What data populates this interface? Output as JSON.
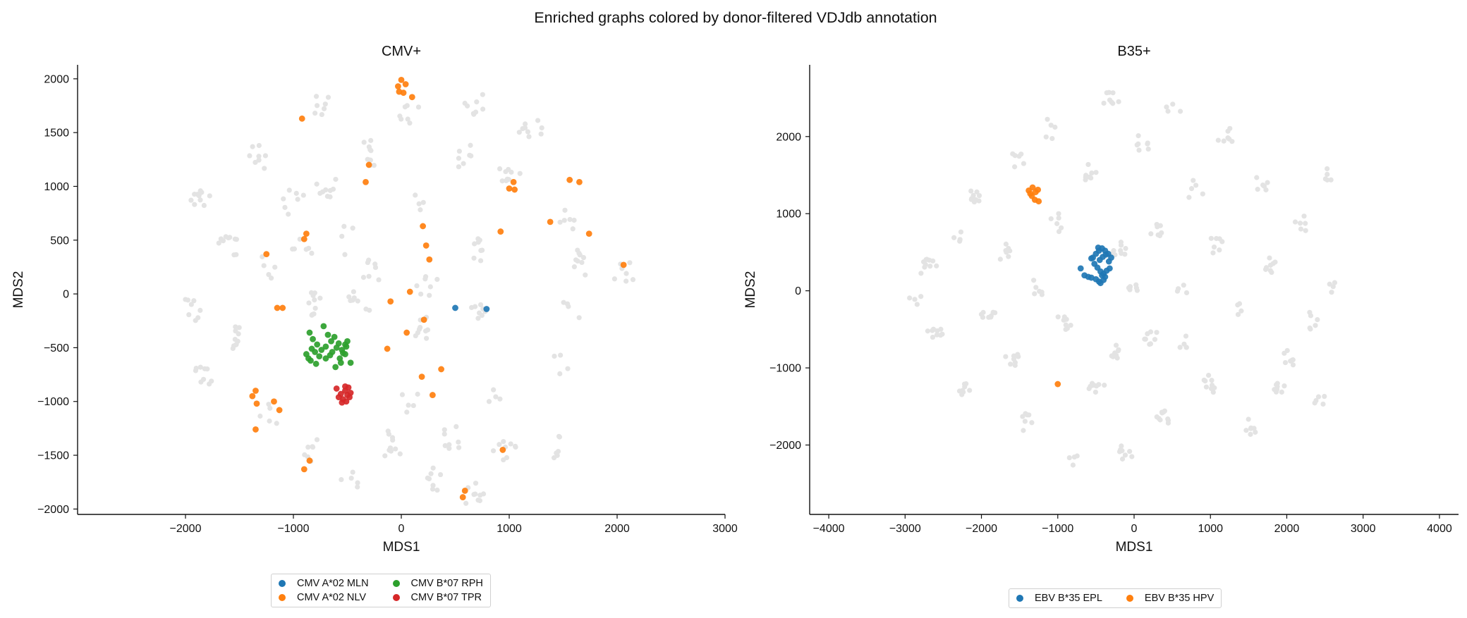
{
  "figure_title": "Enriched graphs colored by donor-filtered VDJdb annotation",
  "colors": {
    "background_nodes": "#e3e3e3",
    "blue": "#1f77b4",
    "orange": "#ff7f0e",
    "green": "#2ca02c",
    "red": "#d62728"
  },
  "chart_data": [
    {
      "type": "scatter",
      "title": "CMV+",
      "xlabel": "MDS1",
      "ylabel": "MDS2",
      "xlim": [
        -3000,
        3000
      ],
      "ylim": [
        -2050,
        2130
      ],
      "xticks": [
        -2000,
        -1000,
        0,
        1000,
        2000,
        3000
      ],
      "yticks": [
        -2000,
        -1500,
        -1000,
        -500,
        0,
        500,
        1000,
        1500,
        2000
      ],
      "grid": false,
      "legend_position": "below",
      "legend_columns": 2,
      "background_clusters": [
        {
          "x": -1950,
          "y": -150
        },
        {
          "x": -1850,
          "y": -750
        },
        {
          "x": -1600,
          "y": 450
        },
        {
          "x": -1850,
          "y": 900
        },
        {
          "x": -1300,
          "y": 1300
        },
        {
          "x": -1000,
          "y": 850
        },
        {
          "x": -1250,
          "y": 250
        },
        {
          "x": -1500,
          "y": -400
        },
        {
          "x": -1200,
          "y": -1100
        },
        {
          "x": -850,
          "y": -1450
        },
        {
          "x": -450,
          "y": -1750
        },
        {
          "x": -800,
          "y": -100
        },
        {
          "x": -400,
          "y": -100
        },
        {
          "x": -500,
          "y": 500
        },
        {
          "x": -700,
          "y": 1000
        },
        {
          "x": -300,
          "y": 1300
        },
        {
          "x": -750,
          "y": 1750
        },
        {
          "x": 50,
          "y": 1700
        },
        {
          "x": 700,
          "y": 1750
        },
        {
          "x": 550,
          "y": 1300
        },
        {
          "x": 1200,
          "y": 1500
        },
        {
          "x": 1000,
          "y": 1100
        },
        {
          "x": 150,
          "y": 800
        },
        {
          "x": 700,
          "y": 400
        },
        {
          "x": 1500,
          "y": 650
        },
        {
          "x": 1700,
          "y": 300
        },
        {
          "x": 1600,
          "y": -100
        },
        {
          "x": 2050,
          "y": 200
        },
        {
          "x": 1450,
          "y": -700
        },
        {
          "x": 1450,
          "y": -1400
        },
        {
          "x": 950,
          "y": -1450
        },
        {
          "x": 900,
          "y": -950
        },
        {
          "x": 700,
          "y": -150
        },
        {
          "x": 200,
          "y": -300
        },
        {
          "x": 100,
          "y": -1000
        },
        {
          "x": -100,
          "y": -1400
        },
        {
          "x": 300,
          "y": -1750
        },
        {
          "x": 650,
          "y": -1850
        },
        {
          "x": 450,
          "y": -1350
        },
        {
          "x": -300,
          "y": 200
        },
        {
          "x": 250,
          "y": 100
        },
        {
          "x": -900,
          "y": 450
        }
      ],
      "series": [
        {
          "name": "CMV A*02 MLN",
          "color": "#1f77b4",
          "x": [
            500,
            790
          ],
          "y": [
            -130,
            -140
          ]
        },
        {
          "name": "CMV A*02 NLV",
          "color": "#ff7f0e",
          "x": [
            -30,
            0,
            40,
            20,
            -20,
            100,
            -300,
            -330,
            1000,
            1040,
            1050,
            1560,
            1650,
            -1250,
            -1150,
            -1100,
            -1350,
            -1380,
            -1340,
            -1180,
            -1130,
            -1350,
            -900,
            -880,
            -920,
            200,
            230,
            260,
            920,
            1380,
            1740,
            2060,
            -100,
            80,
            50,
            210,
            -130,
            190,
            370,
            290,
            940,
            -900,
            -850,
            590,
            570
          ],
          "y": [
            1930,
            1990,
            1950,
            1870,
            1880,
            1830,
            1200,
            1040,
            980,
            1040,
            970,
            1060,
            1040,
            370,
            -130,
            -130,
            -900,
            -950,
            -1020,
            -1000,
            -1080,
            -1260,
            510,
            560,
            1630,
            630,
            450,
            320,
            580,
            670,
            560,
            270,
            -70,
            20,
            -360,
            -240,
            -510,
            -770,
            -700,
            -940,
            -1450,
            -1630,
            -1550,
            -1830,
            -1890
          ]
        },
        {
          "name": "CMV B*07 RPH",
          "color": "#2ca02c",
          "x": [
            -850,
            -820,
            -780,
            -720,
            -680,
            -650,
            -620,
            -580,
            -550,
            -520,
            -500,
            -880,
            -860,
            -840,
            -800,
            -760,
            -740,
            -700,
            -660,
            -640,
            -600,
            -570,
            -540,
            -510,
            -470,
            -830,
            -790,
            -610,
            -700,
            -560,
            -520
          ],
          "y": [
            -360,
            -420,
            -470,
            -300,
            -380,
            -440,
            -400,
            -460,
            -520,
            -470,
            -440,
            -560,
            -600,
            -620,
            -540,
            -580,
            -520,
            -490,
            -570,
            -540,
            -500,
            -600,
            -550,
            -490,
            -640,
            -510,
            -650,
            -680,
            -600,
            -640,
            -560
          ],
          "marker_count_hint": "dense cluster"
        },
        {
          "name": "CMV B*07 TPR",
          "color": "#d62728",
          "x": [
            -600,
            -560,
            -520,
            -490,
            -470,
            -580,
            -540,
            -510,
            -480,
            -550,
            -520,
            -500
          ],
          "y": [
            -880,
            -930,
            -900,
            -870,
            -920,
            -960,
            -980,
            -1000,
            -960,
            -1010,
            -860,
            -940
          ]
        }
      ]
    },
    {
      "type": "scatter",
      "title": "B35+",
      "xlabel": "MDS1",
      "ylabel": "MDS2",
      "xlim": [
        -4250,
        4250
      ],
      "ylim": [
        -2900,
        2930
      ],
      "xticks": [
        -4000,
        -3000,
        -2000,
        -1000,
        0,
        1000,
        2000,
        3000,
        4000
      ],
      "yticks": [
        -2000,
        -1000,
        0,
        1000,
        2000
      ],
      "grid": false,
      "legend_position": "below",
      "legend_columns": 2,
      "background_clusters": [
        {
          "x": -2700,
          "y": 300
        },
        {
          "x": -2600,
          "y": -500
        },
        {
          "x": -2300,
          "y": 700
        },
        {
          "x": -2200,
          "y": -1300
        },
        {
          "x": -2100,
          "y": 1200
        },
        {
          "x": -1900,
          "y": -300
        },
        {
          "x": -1700,
          "y": 500
        },
        {
          "x": -1600,
          "y": -900
        },
        {
          "x": -1500,
          "y": 1700
        },
        {
          "x": -1400,
          "y": -1700
        },
        {
          "x": -1100,
          "y": 2100
        },
        {
          "x": -1000,
          "y": 900
        },
        {
          "x": -900,
          "y": -400
        },
        {
          "x": -800,
          "y": -2200
        },
        {
          "x": -600,
          "y": 1500
        },
        {
          "x": -500,
          "y": -1200
        },
        {
          "x": -300,
          "y": 2500
        },
        {
          "x": -200,
          "y": 500
        },
        {
          "x": -100,
          "y": -2100
        },
        {
          "x": 100,
          "y": 1900
        },
        {
          "x": 200,
          "y": -600
        },
        {
          "x": 300,
          "y": 800
        },
        {
          "x": 400,
          "y": -1600
        },
        {
          "x": 500,
          "y": 2300
        },
        {
          "x": 600,
          "y": 0
        },
        {
          "x": 700,
          "y": -700
        },
        {
          "x": 800,
          "y": 1300
        },
        {
          "x": 1000,
          "y": -1200
        },
        {
          "x": 1100,
          "y": 600
        },
        {
          "x": 1200,
          "y": 2000
        },
        {
          "x": 1400,
          "y": -300
        },
        {
          "x": 1500,
          "y": -1800
        },
        {
          "x": 1700,
          "y": 1400
        },
        {
          "x": 1800,
          "y": 300
        },
        {
          "x": 2000,
          "y": -900
        },
        {
          "x": 2200,
          "y": 900
        },
        {
          "x": 2300,
          "y": -400
        },
        {
          "x": 2500,
          "y": 1500
        },
        {
          "x": 2600,
          "y": 100
        },
        {
          "x": 2400,
          "y": -1400
        },
        {
          "x": -2900,
          "y": -100
        },
        {
          "x": 0,
          "y": 0
        },
        {
          "x": -300,
          "y": -800
        },
        {
          "x": -1300,
          "y": 0
        },
        {
          "x": 1900,
          "y": -1300
        }
      ],
      "series": [
        {
          "name": "EBV B*35 EPL",
          "color": "#1f77b4",
          "x": [
            -540,
            -500,
            -460,
            -420,
            -380,
            -340,
            -300,
            -450,
            -410,
            -370,
            -330,
            -520,
            -480,
            -440,
            -400,
            -360,
            -320,
            -700,
            -650,
            -600,
            -560,
            -500,
            -460,
            -420,
            -380,
            -440,
            -400,
            -560,
            -470
          ],
          "y": [
            430,
            480,
            520,
            550,
            520,
            480,
            430,
            400,
            440,
            470,
            380,
            350,
            300,
            250,
            220,
            260,
            290,
            290,
            200,
            180,
            170,
            150,
            120,
            200,
            180,
            100,
            140,
            420,
            560
          ]
        },
        {
          "name": "EBV B*35 HPV",
          "color": "#ff7f0e",
          "x": [
            -1380,
            -1330,
            -1290,
            -1260,
            -1340,
            -1300,
            -1250,
            -1360,
            -1000
          ],
          "y": [
            1300,
            1340,
            1280,
            1310,
            1230,
            1180,
            1160,
            1260,
            -1210
          ]
        }
      ]
    }
  ]
}
